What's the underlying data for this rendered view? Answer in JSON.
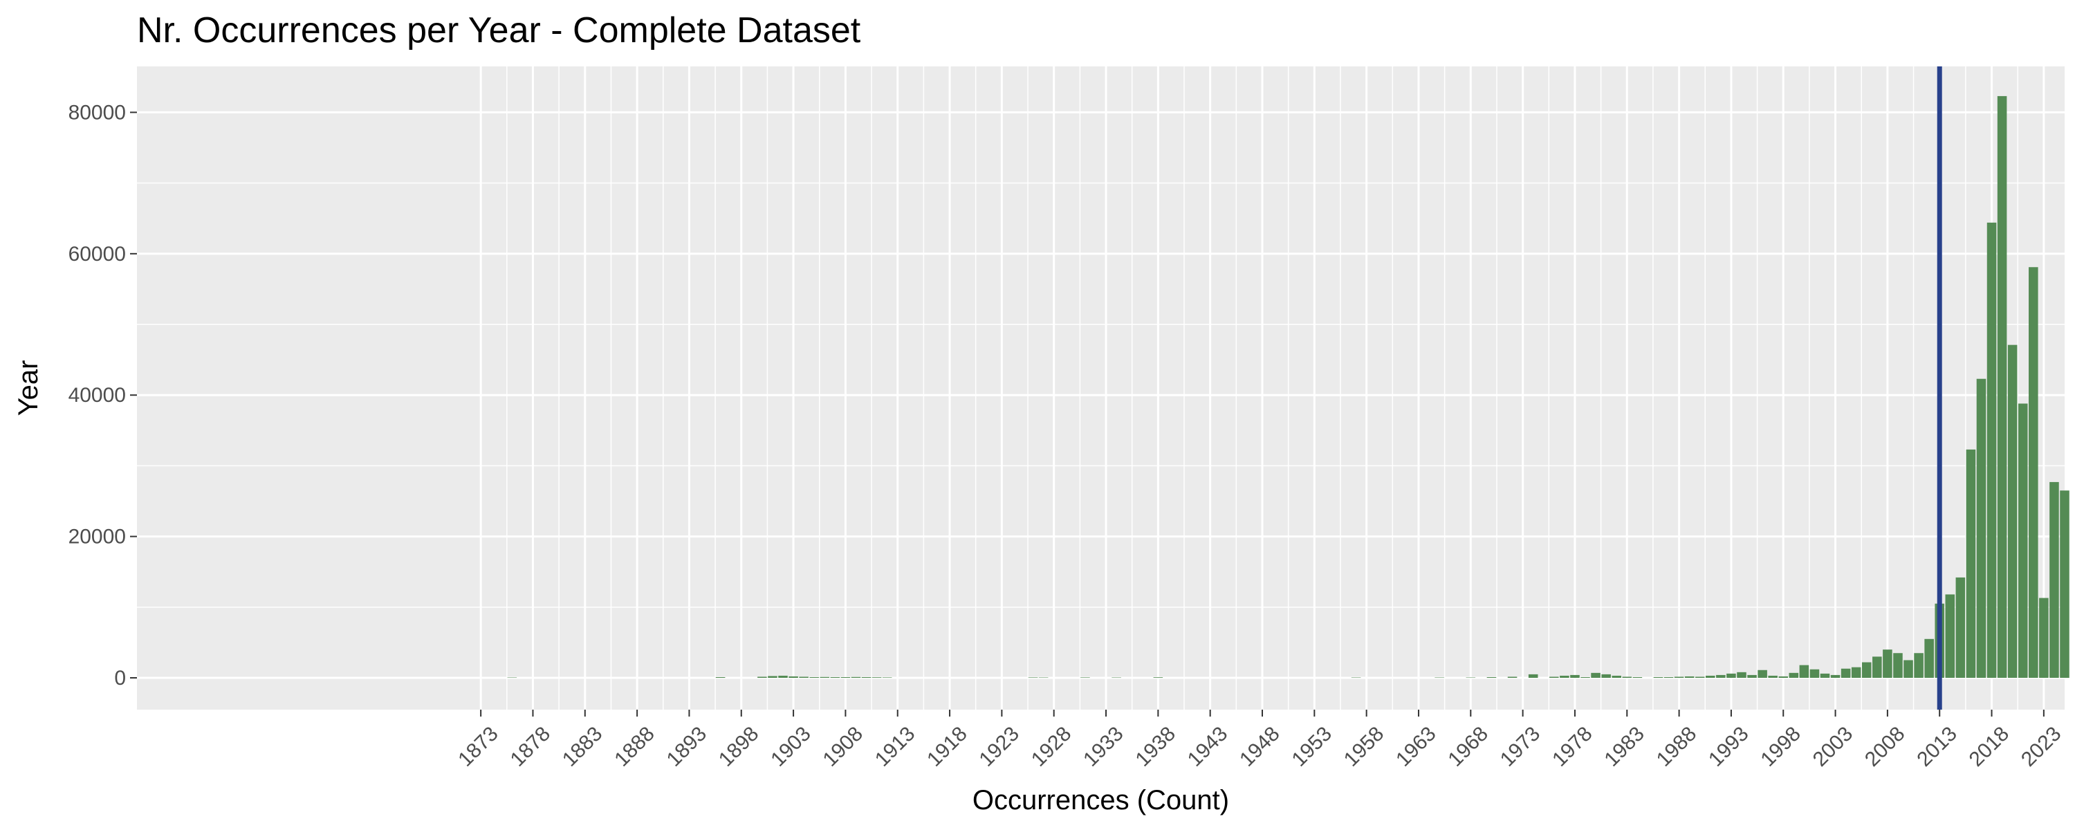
{
  "chart_data": {
    "type": "bar",
    "title": "Nr. Occurrences per Year - Complete Dataset",
    "xlabel": "Occurrences (Count)",
    "ylabel": "Year",
    "xlim": [
      1840,
      2025
    ],
    "ylim": [
      -4500,
      86500
    ],
    "x_ticks": [
      1873,
      1878,
      1883,
      1888,
      1893,
      1898,
      1903,
      1908,
      1913,
      1918,
      1923,
      1928,
      1933,
      1938,
      1943,
      1948,
      1953,
      1958,
      1963,
      1968,
      1973,
      1978,
      1983,
      1988,
      1993,
      1998,
      2003,
      2008,
      2013,
      2018,
      2023
    ],
    "y_ticks": [
      0,
      20000,
      40000,
      60000,
      80000
    ],
    "grid": true,
    "bar_color": "#548b54",
    "reference_line": {
      "x": 2013,
      "color": "#27408b"
    },
    "x": [
      1876,
      1896,
      1900,
      1901,
      1902,
      1903,
      1904,
      1905,
      1906,
      1907,
      1908,
      1909,
      1910,
      1911,
      1912,
      1926,
      1927,
      1931,
      1934,
      1938,
      1957,
      1965,
      1968,
      1970,
      1972,
      1974,
      1976,
      1977,
      1978,
      1979,
      1980,
      1981,
      1982,
      1983,
      1984,
      1986,
      1987,
      1988,
      1989,
      1990,
      1991,
      1992,
      1993,
      1994,
      1995,
      1996,
      1997,
      1998,
      1999,
      2000,
      2001,
      2002,
      2003,
      2004,
      2005,
      2006,
      2007,
      2008,
      2009,
      2010,
      2011,
      2012,
      2013,
      2014,
      2015,
      2016,
      2017,
      2018,
      2019,
      2020,
      2021,
      2022,
      2023,
      2024,
      2025
    ],
    "values": [
      50,
      100,
      150,
      250,
      300,
      200,
      150,
      100,
      120,
      100,
      100,
      120,
      100,
      80,
      60,
      60,
      50,
      60,
      50,
      80,
      50,
      50,
      50,
      100,
      150,
      500,
      150,
      300,
      400,
      100,
      700,
      500,
      300,
      150,
      100,
      100,
      100,
      150,
      200,
      150,
      300,
      400,
      600,
      800,
      400,
      1100,
      300,
      200,
      700,
      1800,
      1200,
      600,
      400,
      1300,
      1500,
      2200,
      3000,
      4000,
      3500,
      2500,
      3500,
      5500,
      10500,
      11800,
      14200,
      32300,
      42300,
      64400,
      82300,
      47100,
      38800,
      58100,
      11300,
      27700,
      26500
    ]
  }
}
